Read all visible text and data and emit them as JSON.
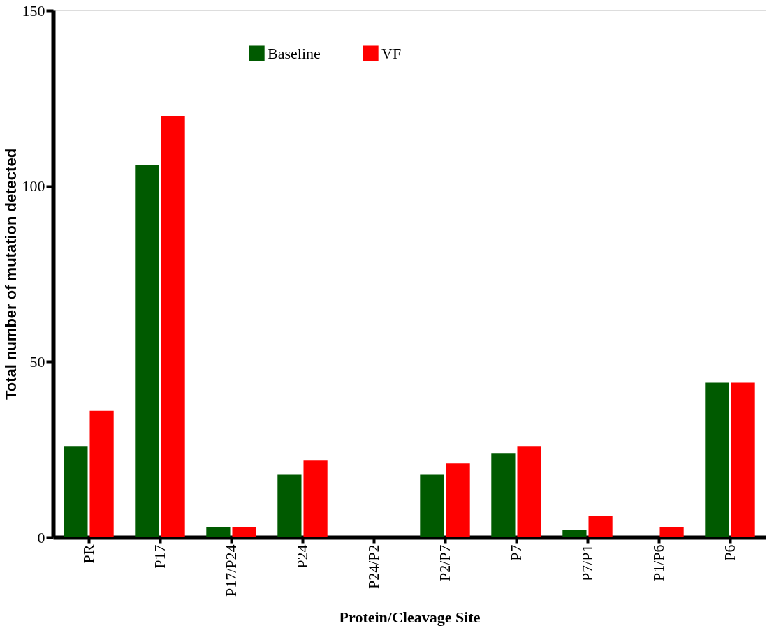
{
  "chart_data": {
    "type": "bar",
    "xlabel": "Protein/Cleavage Site",
    "ylabel": "Total number of mutation detected",
    "categories": [
      "PR",
      "P17",
      "P17/P24",
      "P24",
      "P24/P2",
      "P2/P7",
      "P7",
      "P7/P1",
      "P1/P6",
      "P6"
    ],
    "series": [
      {
        "name": "Baseline",
        "color": "#005a00",
        "values": [
          26,
          106,
          3,
          18,
          0,
          18,
          24,
          2,
          0,
          44
        ]
      },
      {
        "name": "VF",
        "color": "#ff0000",
        "values": [
          36,
          120,
          3,
          22,
          0,
          21,
          26,
          6,
          3,
          44
        ]
      }
    ],
    "ylim": [
      0,
      150
    ],
    "yticks": [
      0,
      50,
      100,
      150
    ],
    "grid": false,
    "legend": "top"
  }
}
